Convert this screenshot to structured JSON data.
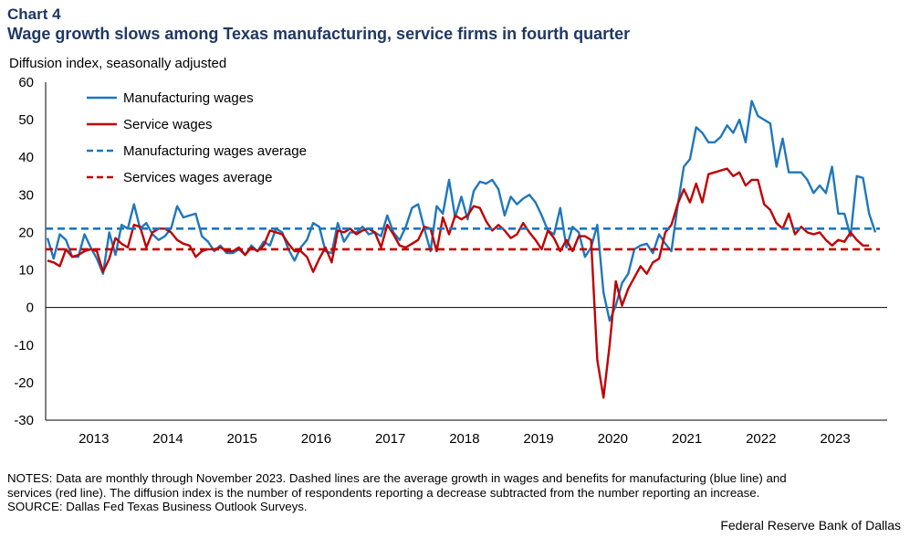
{
  "header": {
    "chart_number": "Chart 4",
    "title": "Wage growth slows among Texas manufacturing, service firms in fourth quarter"
  },
  "footer": {
    "notes_line1": "NOTES: Data are monthly through November 2023. Dashed lines are the average growth in wages and benefits for manufacturing (blue line) and",
    "notes_line2": "services (red line). The diffusion index is the number of respondents reporting a decrease subtracted from the number reporting an increase.",
    "source": "SOURCE: Dallas Fed Texas Business Outlook Surveys.",
    "credit": "Federal Reserve Bank of Dallas"
  },
  "colors": {
    "manufacturing": "#1f77bc",
    "services": "#c00000",
    "title": "#1f3864",
    "axis": "#000000"
  },
  "chart_data": {
    "type": "line",
    "title": "Wage growth slows among Texas manufacturing, service firms in fourth quarter",
    "ylabel": "Diffusion index, seasonally adjusted",
    "xlabel": "",
    "ylim": [
      -30,
      60
    ],
    "yticks": [
      -30,
      -20,
      -10,
      0,
      10,
      20,
      30,
      40,
      50,
      60
    ],
    "x_start": "2012-11",
    "x_end": "2023-11",
    "year_labels": [
      "2013",
      "2014",
      "2015",
      "2016",
      "2017",
      "2018",
      "2019",
      "2020",
      "2021",
      "2022",
      "2023"
    ],
    "grid": false,
    "legend_position": "top-left",
    "series": [
      {
        "name": "Manufacturing wages",
        "style": "solid",
        "color": "#1f77bc",
        "values": [
          18.5,
          13.0,
          19.5,
          18.0,
          13.5,
          13.5,
          19.5,
          16.0,
          13.0,
          9.0,
          20.0,
          14.0,
          22.0,
          21.0,
          27.5,
          21.0,
          22.5,
          19.5,
          18.0,
          19.0,
          21.0,
          27.0,
          24.0,
          24.5,
          25.0,
          19.0,
          17.5,
          15.0,
          16.5,
          14.5,
          14.5,
          15.5,
          14.0,
          16.5,
          15.0,
          17.5,
          16.5,
          21.0,
          20.0,
          15.5,
          12.5,
          16.0,
          18.0,
          22.5,
          21.5,
          15.0,
          14.5,
          22.5,
          17.5,
          20.0,
          20.0,
          21.5,
          19.5,
          20.0,
          19.0,
          24.5,
          20.0,
          18.0,
          21.5,
          26.5,
          27.5,
          21.0,
          15.0,
          27.0,
          25.0,
          34.0,
          24.0,
          29.5,
          23.5,
          31.0,
          33.5,
          33.0,
          34.0,
          31.5,
          24.5,
          29.5,
          27.5,
          29.0,
          30.0,
          28.0,
          24.5,
          20.5,
          19.5,
          26.5,
          16.0,
          21.5,
          20.0,
          13.5,
          16.0,
          22.0,
          4.0,
          -3.5,
          0.5,
          6.5,
          9.0,
          15.5,
          16.5,
          17.0,
          14.5,
          19.5,
          17.0,
          15.0,
          27.0,
          37.5,
          39.5,
          48.0,
          46.5,
          44.0,
          44.0,
          45.5,
          48.5,
          46.5,
          50.0,
          44.0,
          55.0,
          51.0,
          50.0,
          49.0,
          37.5,
          45.0,
          36.0,
          36.0,
          36.0,
          34.0,
          30.5,
          32.5,
          30.5,
          37.5,
          25.0,
          25.0,
          19.0,
          35.0,
          34.5,
          25.0,
          20.0
        ]
      },
      {
        "name": "Service wages",
        "style": "solid",
        "color": "#c00000",
        "values": [
          12.5,
          12.0,
          11.0,
          15.5,
          13.5,
          14.0,
          15.0,
          15.5,
          15.0,
          9.5,
          13.0,
          18.5,
          17.0,
          16.0,
          22.0,
          21.5,
          16.0,
          20.0,
          21.0,
          21.0,
          20.0,
          18.0,
          17.0,
          16.5,
          13.5,
          15.0,
          15.5,
          15.5,
          16.0,
          15.0,
          15.0,
          16.0,
          14.0,
          16.0,
          15.0,
          16.5,
          20.5,
          20.0,
          19.5,
          17.0,
          15.0,
          15.0,
          13.5,
          9.5,
          13.0,
          16.0,
          12.0,
          20.5,
          20.0,
          21.0,
          19.5,
          20.5,
          21.0,
          20.0,
          16.0,
          22.0,
          19.5,
          16.5,
          16.0,
          17.0,
          18.0,
          21.5,
          21.0,
          15.0,
          24.0,
          19.5,
          24.5,
          23.5,
          24.5,
          27.0,
          26.5,
          23.0,
          20.5,
          22.0,
          20.5,
          18.5,
          19.5,
          22.5,
          20.0,
          18.0,
          15.5,
          20.5,
          18.5,
          15.0,
          18.0,
          15.0,
          19.0,
          19.0,
          18.0,
          -14.0,
          -24.0,
          -10.0,
          7.0,
          0.5,
          5.0,
          8.0,
          11.0,
          9.0,
          12.0,
          13.0,
          20.0,
          22.0,
          27.5,
          31.5,
          28.0,
          33.0,
          28.0,
          35.5,
          36.0,
          36.5,
          37.0,
          35.0,
          36.0,
          32.5,
          34.0,
          34.0,
          27.5,
          26.0,
          22.5,
          21.0,
          25.0,
          19.5,
          21.5,
          20.0,
          19.5,
          20.0,
          18.0,
          16.5,
          18.0,
          17.5,
          20.0,
          18.0,
          16.5,
          16.5
        ]
      },
      {
        "name": "Manufacturing wages average",
        "style": "dashed",
        "color": "#1f77bc",
        "constant": 21.0
      },
      {
        "name": "Services wages average",
        "style": "dashed",
        "color": "#c00000",
        "constant": 15.5
      }
    ]
  }
}
